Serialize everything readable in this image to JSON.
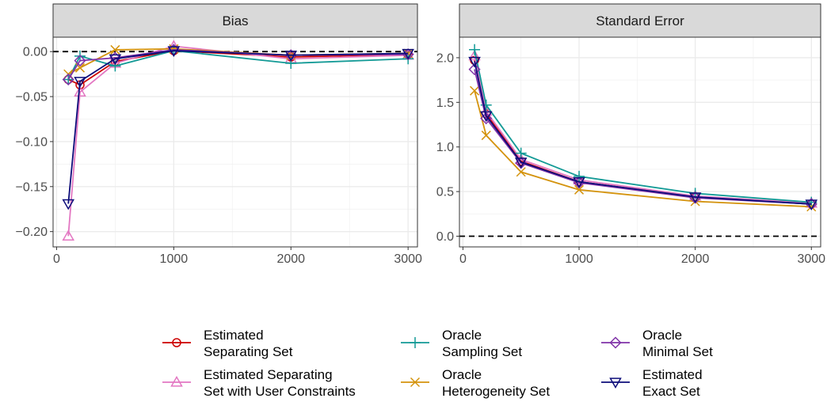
{
  "chart_data": [
    {
      "type": "line",
      "title": "Bias",
      "xlabel": "",
      "ylabel": "",
      "xlim": [
        -30,
        3080
      ],
      "ylim": [
        -0.217,
        0.016
      ],
      "xticks": [
        0,
        1000,
        2000,
        3000
      ],
      "xtick_labels": [
        "0",
        "1000",
        "2000",
        "3000"
      ],
      "yticks": [
        0.0,
        -0.05,
        -0.1,
        -0.15,
        -0.2
      ],
      "ytick_labels": [
        "0.00",
        "−0.05",
        "−0.10",
        "−0.15",
        "−0.20"
      ],
      "reference_line": 0,
      "grid": true,
      "x": [
        100,
        200,
        500,
        1000,
        2000,
        3000
      ],
      "series": [
        {
          "key": "est_sep",
          "values": [
            -0.031,
            -0.037,
            -0.011,
            0.001,
            -0.006,
            -0.003
          ]
        },
        {
          "key": "est_sep_user",
          "values": [
            -0.205,
            -0.045,
            -0.013,
            0.006,
            -0.008,
            -0.004
          ]
        },
        {
          "key": "orc_samp",
          "values": [
            -0.031,
            -0.005,
            -0.016,
            0.001,
            -0.013,
            -0.008
          ]
        },
        {
          "key": "orc_het",
          "values": [
            -0.025,
            -0.018,
            0.002,
            0.003,
            -0.004,
            -0.002
          ]
        },
        {
          "key": "orc_min",
          "values": [
            -0.031,
            -0.01,
            -0.007,
            0.002,
            -0.004,
            -0.003
          ]
        },
        {
          "key": "est_exact",
          "values": [
            -0.169,
            -0.033,
            -0.008,
            0.001,
            -0.004,
            -0.002
          ]
        }
      ]
    },
    {
      "type": "line",
      "title": "Standard Error",
      "xlabel": "",
      "ylabel": "",
      "xlim": [
        -30,
        3080
      ],
      "ylim": [
        -0.12,
        2.23
      ],
      "xticks": [
        0,
        1000,
        2000,
        3000
      ],
      "xtick_labels": [
        "0",
        "1000",
        "2000",
        "3000"
      ],
      "yticks": [
        0.0,
        0.5,
        1.0,
        1.5,
        2.0
      ],
      "ytick_labels": [
        "0.0",
        "0.5",
        "1.0",
        "1.5",
        "2.0"
      ],
      "reference_line": 0,
      "grid": true,
      "x": [
        100,
        200,
        500,
        1000,
        2000,
        3000
      ],
      "series": [
        {
          "key": "est_sep",
          "values": [
            1.97,
            1.37,
            0.84,
            0.61,
            0.44,
            0.36
          ]
        },
        {
          "key": "est_sep_user",
          "values": [
            2.02,
            1.4,
            0.86,
            0.63,
            0.45,
            0.37
          ]
        },
        {
          "key": "orc_samp",
          "values": [
            2.09,
            1.47,
            0.93,
            0.67,
            0.48,
            0.38
          ]
        },
        {
          "key": "orc_het",
          "values": [
            1.63,
            1.13,
            0.72,
            0.52,
            0.39,
            0.33
          ]
        },
        {
          "key": "orc_min",
          "values": [
            1.87,
            1.32,
            0.82,
            0.6,
            0.43,
            0.36
          ]
        },
        {
          "key": "est_exact",
          "values": [
            1.96,
            1.35,
            0.83,
            0.61,
            0.44,
            0.36
          ]
        }
      ]
    }
  ],
  "legend": {
    "placement": "bottom",
    "items": [
      {
        "key": "est_sep",
        "lines": [
          "Estimated",
          "Separating Set"
        ],
        "color": "#CC0000",
        "shape": "circle"
      },
      {
        "key": "est_sep_user",
        "lines": [
          "Estimated Separating",
          "Set with User Constraints"
        ],
        "color": "#E377C2",
        "shape": "triangle-up"
      },
      {
        "key": "orc_samp",
        "lines": [
          "Oracle",
          "Sampling Set"
        ],
        "color": "#139A96",
        "shape": "plus"
      },
      {
        "key": "orc_het",
        "lines": [
          "Oracle",
          "Heterogeneity Set"
        ],
        "color": "#D4930D",
        "shape": "cross"
      },
      {
        "key": "orc_min",
        "lines": [
          "Oracle",
          "Minimal Set"
        ],
        "color": "#8033A8",
        "shape": "diamond"
      },
      {
        "key": "est_exact",
        "lines": [
          "Estimated",
          "Exact Set"
        ],
        "color": "#0D0D7A",
        "shape": "triangle-down"
      }
    ]
  }
}
